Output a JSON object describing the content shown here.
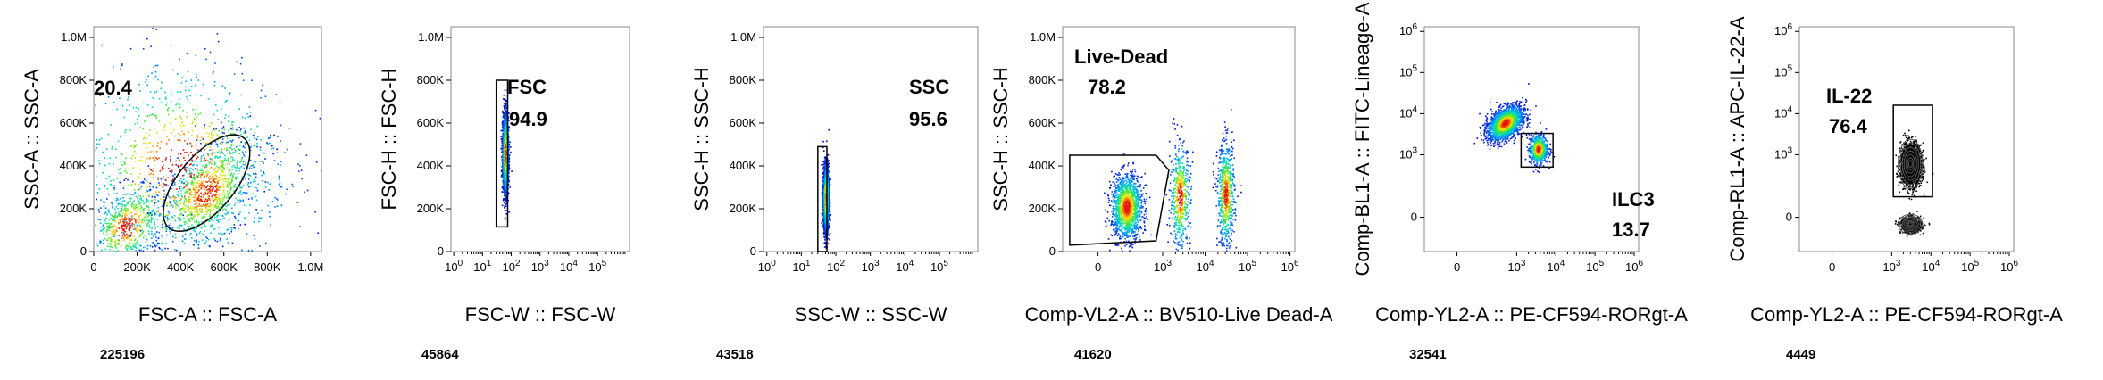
{
  "chart_data": [
    {
      "type": "scatter",
      "xlabel": "FSC-A :: FSC-A",
      "ylabel": "SSC-A :: SSC-A",
      "x_scale": "linear",
      "y_scale": "linear",
      "xlim": [
        0,
        1050000
      ],
      "ylim": [
        0,
        1050000
      ],
      "x_ticks": [
        0,
        200000,
        400000,
        600000,
        800000,
        1000000
      ],
      "x_tick_labels": [
        "0",
        "200K",
        "400K",
        "600K",
        "800K",
        "1.0M"
      ],
      "y_ticks": [
        0,
        200000,
        400000,
        600000,
        800000,
        1000000
      ],
      "y_tick_labels": [
        "0",
        "200K",
        "400K",
        "600K",
        "800K",
        "1.0M"
      ],
      "clusters": [
        {
          "x": 150000,
          "y": 120000,
          "sx": 110000,
          "sy": 90000,
          "weight": 0.25,
          "rot": 0.7
        },
        {
          "x": 520000,
          "y": 280000,
          "sx": 140000,
          "sy": 110000,
          "weight": 0.35,
          "rot": 0.8
        },
        {
          "x": 400000,
          "y": 400000,
          "sx": 260000,
          "sy": 260000,
          "weight": 0.4,
          "rot": 0
        }
      ],
      "gate": {
        "shape": "ellipse",
        "cx": 520000,
        "cy": 320000,
        "rx": 270000,
        "ry": 130000,
        "angle_deg": 50
      },
      "gate_name": "",
      "gate_percent": "20.4",
      "event_count": "225196"
    },
    {
      "type": "scatter",
      "xlabel": "FSC-W :: FSC-W",
      "ylabel": "FSC-H :: FSC-H",
      "x_scale": "log",
      "y_scale": "linear",
      "xlim": [
        0.8,
        1300000
      ],
      "ylim": [
        0,
        1050000
      ],
      "x_ticks": [
        1,
        10,
        100,
        1000,
        10000,
        100000
      ],
      "x_tick_labels": [
        "10^0",
        "10^1",
        "10^2",
        "10^3",
        "10^4",
        "10^5"
      ],
      "y_ticks": [
        0,
        200000,
        400000,
        600000,
        800000,
        1000000
      ],
      "y_tick_labels": [
        "0",
        "200K",
        "400K",
        "600K",
        "800K",
        "1.0M"
      ],
      "clusters": [
        {
          "x": 60,
          "y": 460000,
          "sx": 0.05,
          "sy": 90000,
          "weight": 1,
          "rot": 0
        }
      ],
      "gate": {
        "shape": "rect",
        "x1": 30,
        "x2": 75,
        "y1": 115000,
        "y2": 800000
      },
      "gate_name": "FSC",
      "gate_percent": "94.9",
      "event_count": "45864"
    },
    {
      "type": "scatter",
      "xlabel": "SSC-W :: SSC-W",
      "ylabel": "SSC-H :: SSC-H",
      "x_scale": "log",
      "y_scale": "linear",
      "xlim": [
        0.8,
        1300000
      ],
      "ylim": [
        0,
        1050000
      ],
      "x_ticks": [
        1,
        10,
        100,
        1000,
        10000,
        100000
      ],
      "x_tick_labels": [
        "10^0",
        "10^1",
        "10^2",
        "10^3",
        "10^4",
        "10^5"
      ],
      "y_ticks": [
        0,
        200000,
        400000,
        600000,
        800000,
        1000000
      ],
      "y_tick_labels": [
        "0",
        "200K",
        "400K",
        "600K",
        "800K",
        "1.0M"
      ],
      "clusters": [
        {
          "x": 50,
          "y": 250000,
          "sx": 0.04,
          "sy": 75000,
          "weight": 1,
          "rot": 0
        }
      ],
      "gate": {
        "shape": "rect",
        "x1": 30,
        "x2": 55,
        "y1": 0,
        "y2": 490000
      },
      "gate_name": "SSC",
      "gate_percent": "95.6",
      "event_count": "43518"
    },
    {
      "type": "scatter",
      "xlabel": "Comp-VL2-A :: BV510-Live Dead-A",
      "ylabel": "SSC-H :: SSC-H",
      "x_scale": "biex",
      "y_scale": "linear",
      "xlim": [
        -250,
        1300000
      ],
      "ylim": [
        0,
        1050000
      ],
      "x_ticks": [
        0,
        1000,
        10000,
        100000,
        1000000
      ],
      "x_tick_labels": [
        "0",
        "10^3",
        "10^4",
        "10^5",
        "10^6"
      ],
      "y_ticks": [
        0,
        200000,
        400000,
        600000,
        800000,
        1000000
      ],
      "y_tick_labels": [
        "0",
        "200K",
        "400K",
        "600K",
        "800K",
        "1.0M"
      ],
      "clusters": [
        {
          "x": 200,
          "y": 210000,
          "sx": 0.18,
          "sy": 75000,
          "weight": 0.55,
          "rot": 0
        },
        {
          "x": 2500,
          "y": 260000,
          "sx": 0.12,
          "sy": 120000,
          "weight": 0.2,
          "rot": 0
        },
        {
          "x": 30000,
          "y": 270000,
          "sx": 0.1,
          "sy": 120000,
          "weight": 0.25,
          "rot": 0
        }
      ],
      "gate": {
        "shape": "polygon",
        "points": [
          [
            -200,
            450000
          ],
          [
            700,
            450000
          ],
          [
            1400,
            380000
          ],
          [
            700,
            50000
          ],
          [
            -200,
            30000
          ]
        ]
      },
      "gate_name": "Live-Dead",
      "gate_percent": "78.2",
      "event_count": "41620"
    },
    {
      "type": "scatter",
      "xlabel": "Comp-YL2-A :: PE-CF594-RORgt-A",
      "ylabel": "Comp-BL1-A :: FITC-Lineage-A",
      "x_scale": "biex",
      "y_scale": "biex",
      "xlim": [
        -250,
        1300000
      ],
      "ylim": [
        -250,
        1300000
      ],
      "x_ticks": [
        0,
        1000,
        10000,
        100000,
        1000000
      ],
      "x_tick_labels": [
        "0",
        "10^3",
        "10^4",
        "10^5",
        "10^6"
      ],
      "y_ticks": [
        0,
        1000,
        10000,
        100000,
        1000000
      ],
      "y_tick_labels": [
        "0",
        "10^3",
        "10^4",
        "10^5",
        "10^6"
      ],
      "clusters": [
        {
          "x": 500,
          "y": 6000,
          "sx": 0.22,
          "sy": 0.2,
          "weight": 0.75,
          "rot": 0.5
        },
        {
          "x": 3500,
          "y": 1400,
          "sx": 0.12,
          "sy": 0.18,
          "weight": 0.25,
          "rot": 0
        }
      ],
      "gate": {
        "shape": "rect",
        "x1": 1300,
        "x2": 8500,
        "y1": 500,
        "y2": 3300
      },
      "gate_name": "ILC3",
      "gate_percent": "13.7",
      "event_count": "32541"
    },
    {
      "type": "contour",
      "xlabel": "Comp-YL2-A :: PE-CF594-RORgt-A",
      "ylabel": "Comp-RL1-A :: APC-IL-22-A",
      "x_scale": "biex",
      "y_scale": "biex",
      "xlim": [
        -250,
        1300000
      ],
      "ylim": [
        -250,
        1300000
      ],
      "x_ticks": [
        0,
        1000,
        10000,
        100000,
        1000000
      ],
      "x_tick_labels": [
        "0",
        "10^3",
        "10^4",
        "10^5",
        "10^6"
      ],
      "y_ticks": [
        0,
        1000,
        10000,
        100000,
        1000000
      ],
      "y_tick_labels": [
        "0",
        "10^3",
        "10^4",
        "10^5",
        "10^6"
      ],
      "clusters": [
        {
          "x": 3000,
          "y": 600,
          "sx": 0.13,
          "sy": 0.25,
          "weight": 0.75,
          "rot": 0
        },
        {
          "x": 3000,
          "y": -50,
          "sx": 0.13,
          "sy": 0.1,
          "weight": 0.25,
          "rot": 0
        }
      ],
      "gate": {
        "shape": "rect",
        "x1": 1100,
        "x2": 11000,
        "y1": 150,
        "y2": 16000
      },
      "gate_name": "IL-22",
      "gate_percent": "76.4",
      "event_count": "4449"
    }
  ]
}
